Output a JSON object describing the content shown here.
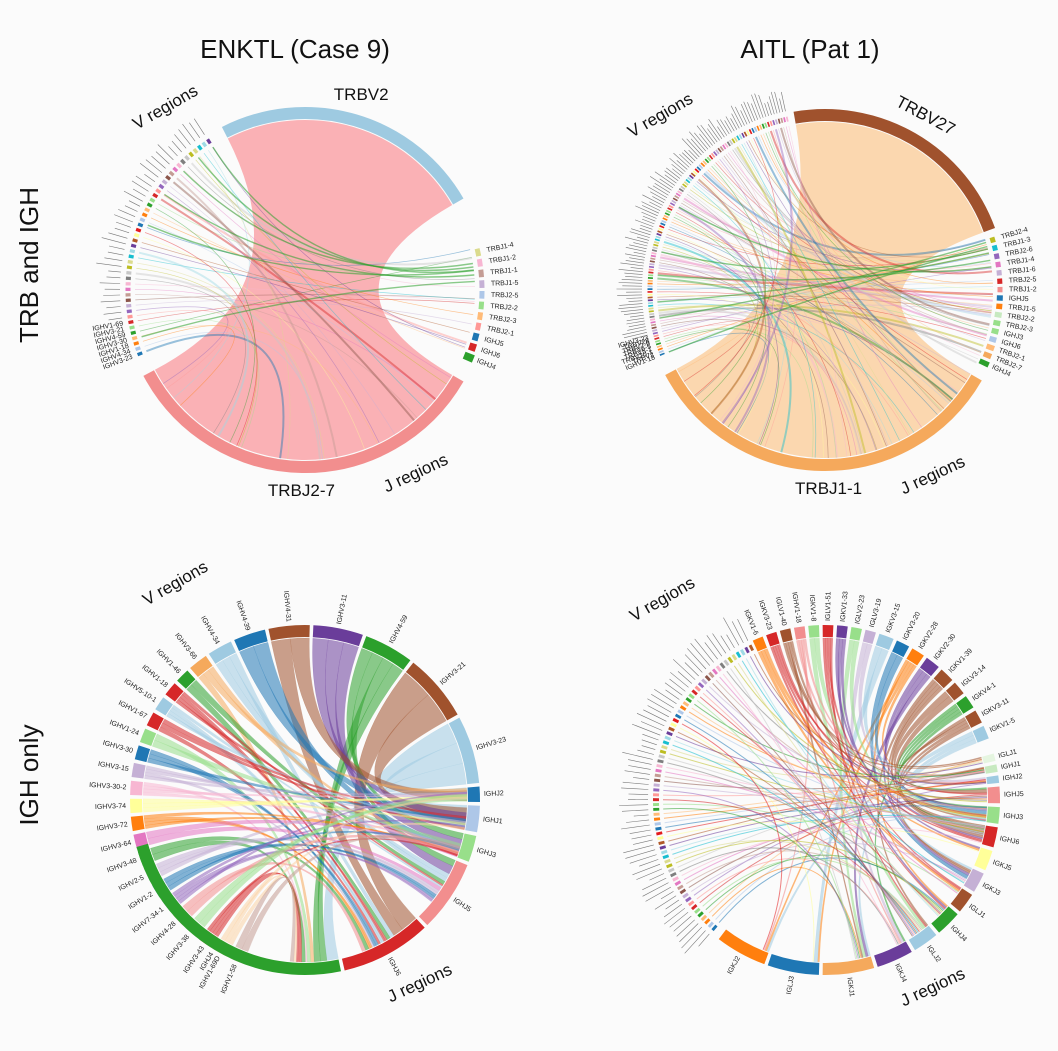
{
  "columns": [
    "ENKTL (Case 9)",
    "AITL (Pat 1)"
  ],
  "rows": [
    "TRB and IGH",
    "IGH only"
  ],
  "region_labels": {
    "v": "V regions",
    "j": "J regions"
  },
  "palette": [
    "#1f77b4",
    "#aec7e8",
    "#ff7f0e",
    "#ffbb78",
    "#2ca02c",
    "#98df8a",
    "#d62728",
    "#ff9896",
    "#9467bd",
    "#c5b0d5",
    "#8c564b",
    "#c49c94",
    "#e377c2",
    "#f7b6d2",
    "#7f7f7f",
    "#c7c7c7",
    "#bcbd22",
    "#dbdb8d",
    "#17becf",
    "#9edae5",
    "#6a3d9a",
    "#b15928",
    "#ffff99",
    "#e31a1c"
  ],
  "panels": [
    {
      "id": "enktl-trb-igh",
      "title": "ENKTL (Case 9) – TRB and IGH",
      "major": [
        {
          "label": "TRBV2",
          "color": "#9ecae1",
          "group": "v"
        },
        {
          "label": "TRBJ2-7",
          "color": "#f28e8e",
          "group": "j"
        }
      ],
      "main_ribbon_color": "#f9a9ad",
      "j_small": [
        "IGHJ4",
        "IGHJ6",
        "IGHJ5",
        "TRBJ2-1",
        "TRBJ2-3",
        "TRBJ2-2",
        "TRBJ2-5",
        "TRBJ1-5",
        "TRBJ1-1",
        "TRBJ1-2",
        "TRBJ1-4"
      ],
      "j_small_colors": [
        "#2ca02c",
        "#d62728",
        "#1f77b4",
        "#ff9896",
        "#ffbb78",
        "#98df8a",
        "#aec7e8",
        "#c5b0d5",
        "#c49c94",
        "#f7b6d2",
        "#dbdb8d"
      ],
      "v_small_labels": [
        "IGHV3-23",
        "IGHV4-34",
        "IGHV1-18",
        "IGHV3-30",
        "IGHV4-59",
        "IGHV3-21",
        "IGHV1-69"
      ],
      "v_small_count": 45
    },
    {
      "id": "aitl-trb-igh",
      "title": "AITL (Pat 1) – TRB and IGH",
      "major": [
        {
          "label": "TRBV27",
          "color": "#a0522d",
          "group": "v"
        },
        {
          "label": "TRBJ1-1",
          "color": "#f5a95c",
          "group": "j"
        }
      ],
      "main_ribbon_color": "#fbd3a6",
      "j_small": [
        "IGHJ4",
        "TRBJ2-7",
        "TRBJ2-1",
        "IGHJ6",
        "IGHJ3",
        "TRBJ2-3",
        "TRBJ2-2",
        "TRBJ1-5",
        "IGHJ5",
        "TRBJ1-2",
        "TRBJ2-5",
        "TRBJ1-6",
        "TRBJ1-4",
        "TRBJ2-6",
        "TRBJ1-3",
        "TRBJ2-4"
      ],
      "j_small_colors": [
        "#2ca02c",
        "#f5a95c",
        "#ffbb78",
        "#aec7e8",
        "#98df8a",
        "#98df8a",
        "#c7e9c0",
        "#ff7f0e",
        "#1f77b4",
        "#f28e8e",
        "#d62728",
        "#c5b0d5",
        "#e377c2",
        "#9467bd",
        "#17becf",
        "#bcbd22"
      ],
      "v_small_labels": [
        "IGHV1-18",
        "TRBV2",
        "TRBV20-1",
        "TRBV5-1",
        "TRBV6-5",
        "TRBV7-9",
        "TRBV28",
        "IGHV3-23"
      ],
      "v_small_count": 110
    },
    {
      "id": "enktl-igh",
      "title": "ENKTL (Case 9) – IGH only",
      "v_segments": [
        {
          "label": "IGHV3-23",
          "color": "#9ecae1"
        },
        {
          "label": "IGHV3-21",
          "color": "#a0522d"
        },
        {
          "label": "IGHV4-59",
          "color": "#2ca02c"
        },
        {
          "label": "IGHV3-11",
          "color": "#6a3d9a"
        },
        {
          "label": "IGHV4-31",
          "color": "#a0522d"
        },
        {
          "label": "IGHV4-39",
          "color": "#1f77b4"
        },
        {
          "label": "IGHV4-34",
          "color": "#9ecae1"
        },
        {
          "label": "IGHV3-66",
          "color": "#f5a95c"
        },
        {
          "label": "IGHV1-46",
          "color": "#2ca02c"
        },
        {
          "label": "IGHV1-18",
          "color": "#d62728"
        },
        {
          "label": "IGHV5-10-1",
          "color": "#9ecae1"
        },
        {
          "label": "IGHV1-67",
          "color": "#d62728"
        },
        {
          "label": "IGHV1-24",
          "color": "#98df8a"
        },
        {
          "label": "IGHV3-30",
          "color": "#1f77b4"
        },
        {
          "label": "IGHV3-15",
          "color": "#c5b0d5"
        },
        {
          "label": "IGHV3-30-2",
          "color": "#f7b6d2"
        },
        {
          "label": "IGHV3-74",
          "color": "#ffff99"
        },
        {
          "label": "IGHV3-72",
          "color": "#ff7f0e"
        },
        {
          "label": "IGHV3-64",
          "color": "#e377c2"
        },
        {
          "label": "IGHV3-48",
          "color": "#2ca02c"
        },
        {
          "label": "IGHV2-5",
          "color": "#c5b0d5"
        },
        {
          "label": "IGHV1-2",
          "color": "#1f77b4"
        },
        {
          "label": "IGHV7-34-1",
          "color": "#9467bd"
        },
        {
          "label": "IGHV4-28",
          "color": "#f28e8e"
        },
        {
          "label": "IGHV3-38",
          "color": "#98df8a"
        },
        {
          "label": "IGHV3-43",
          "color": "#d62728"
        },
        {
          "label": "IGHV1-69D",
          "color": "#fbd3a6"
        },
        {
          "label": "IGHV1-58",
          "color": "#c49c94"
        }
      ],
      "j_segments": [
        {
          "label": "IGHJ2",
          "color": "#1f77b4"
        },
        {
          "label": "IGHJ1",
          "color": "#aec7e8"
        },
        {
          "label": "IGHJ3",
          "color": "#98df8a"
        },
        {
          "label": "IGHJ5",
          "color": "#f28e8e"
        },
        {
          "label": "IGHJ6",
          "color": "#d62728"
        },
        {
          "label": "IGHJ4",
          "color": "#2ca02c"
        }
      ]
    },
    {
      "id": "aitl-igh",
      "title": "AITL (Pat 1) – IGH only",
      "v_segments": [
        {
          "label": "IGKV1-5",
          "color": "#9ecae1"
        },
        {
          "label": "IGKV3-11",
          "color": "#a0522d"
        },
        {
          "label": "IGKV4-1",
          "color": "#2ca02c"
        },
        {
          "label": "IGLV3-14",
          "color": "#a0522d"
        },
        {
          "label": "IGKV1-39",
          "color": "#a0522d"
        },
        {
          "label": "IGKV2-30",
          "color": "#6a3d9a"
        },
        {
          "label": "IGKV2-28",
          "color": "#ff7f0e"
        },
        {
          "label": "IGKV3-20",
          "color": "#1f77b4"
        },
        {
          "label": "IGKV3-15",
          "color": "#9ecae1"
        },
        {
          "label": "IGLV3-19",
          "color": "#c5b0d5"
        },
        {
          "label": "IGLV2-23",
          "color": "#98df8a"
        },
        {
          "label": "IGKV1-33",
          "color": "#6a3d9a"
        },
        {
          "label": "IGLV1-51",
          "color": "#d62728"
        },
        {
          "label": "IGKV1-8",
          "color": "#98df8a"
        },
        {
          "label": "IGHV1-18",
          "color": "#f28e8e"
        },
        {
          "label": "IGLV1-40",
          "color": "#a0522d"
        },
        {
          "label": "IGKV3-23",
          "color": "#d62728"
        },
        {
          "label": "IGKV1-6",
          "color": "#ff7f0e"
        }
      ],
      "v_small_count": 70,
      "j_segments": [
        {
          "label": "IGLJ1",
          "color": "#e5f5e0"
        },
        {
          "label": "IGHJ1",
          "color": "#c7e9c0"
        },
        {
          "label": "IGHJ2",
          "color": "#9ecae1"
        },
        {
          "label": "IGHJ5",
          "color": "#f28e8e"
        },
        {
          "label": "IGHJ3",
          "color": "#98df8a"
        },
        {
          "label": "IGHJ6",
          "color": "#d62728"
        },
        {
          "label": "IGKJ5",
          "color": "#ffff99"
        },
        {
          "label": "IGKJ3",
          "color": "#c5b0d5"
        },
        {
          "label": "IGLJ1",
          "color": "#a0522d"
        },
        {
          "label": "IGHJ4",
          "color": "#2ca02c"
        },
        {
          "label": "IGLJ2",
          "color": "#9ecae1"
        },
        {
          "label": "IGKJ4",
          "color": "#6a3d9a"
        },
        {
          "label": "IGKJ1",
          "color": "#f5a95c"
        },
        {
          "label": "IGLJ3",
          "color": "#1f77b4"
        },
        {
          "label": "IGKJ2",
          "color": "#ff7f0e"
        }
      ]
    }
  ]
}
